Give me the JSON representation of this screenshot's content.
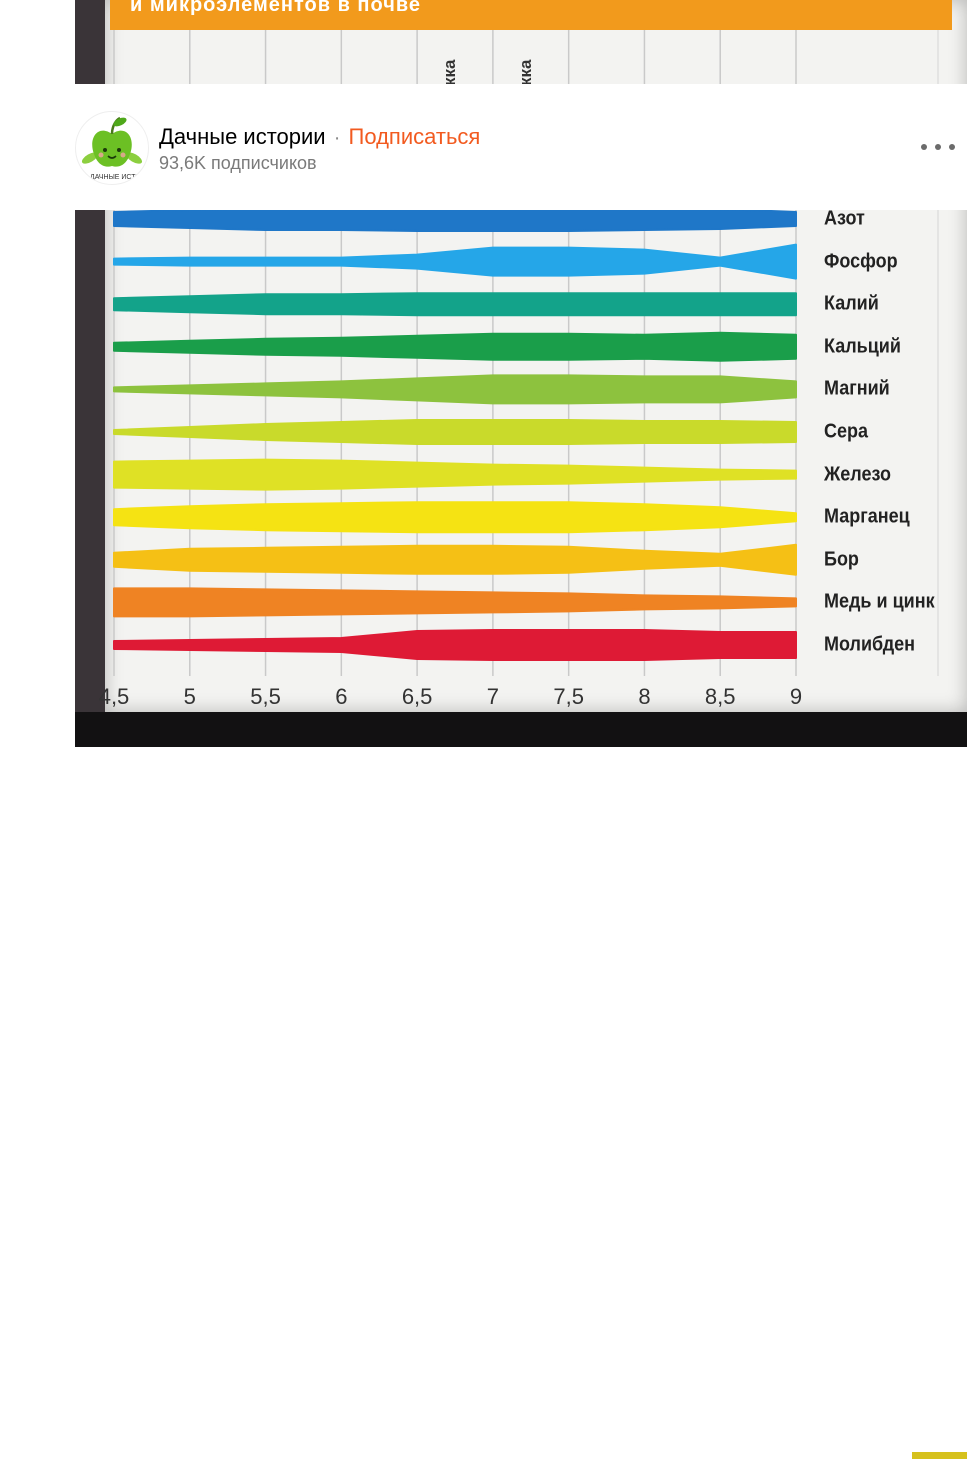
{
  "image": {
    "banner_text": "и микроэлементов в почве",
    "column_labels": [
      "кка",
      "кка"
    ],
    "x_ticks": [
      "4,5",
      "5",
      "5,5",
      "6",
      "6,5",
      "7",
      "7,5",
      "8",
      "8,5",
      "9"
    ],
    "rows": [
      {
        "label": "Азот",
        "color": "#1f77c8"
      },
      {
        "label": "Фосфор",
        "color": "#25a6e8"
      },
      {
        "label": "Калий",
        "color": "#13a38a"
      },
      {
        "label": "Кальций",
        "color": "#1a9e4a"
      },
      {
        "label": "Магний",
        "color": "#8dc23e"
      },
      {
        "label": "Сера",
        "color": "#c9da2b"
      },
      {
        "label": "Железо",
        "color": "#dfe125"
      },
      {
        "label": "Марганец",
        "color": "#f5e313"
      },
      {
        "label": "Бор",
        "color": "#f5c015"
      },
      {
        "label": "Медь и цинк",
        "color": "#ef8323"
      },
      {
        "label": "Молибден",
        "color": "#de1a35"
      }
    ]
  },
  "channel": {
    "name": "Дачные истории",
    "separator": "·",
    "subscribe_label": "Подписаться",
    "subscribers": "93,6K подписчиков",
    "avatar_caption": "ДАЧНЫЕ ИСТОР",
    "avatar_icon": "green-apple-icon",
    "more_icon": "more-dots-icon",
    "subscribe_color": "#f25a1f"
  }
}
